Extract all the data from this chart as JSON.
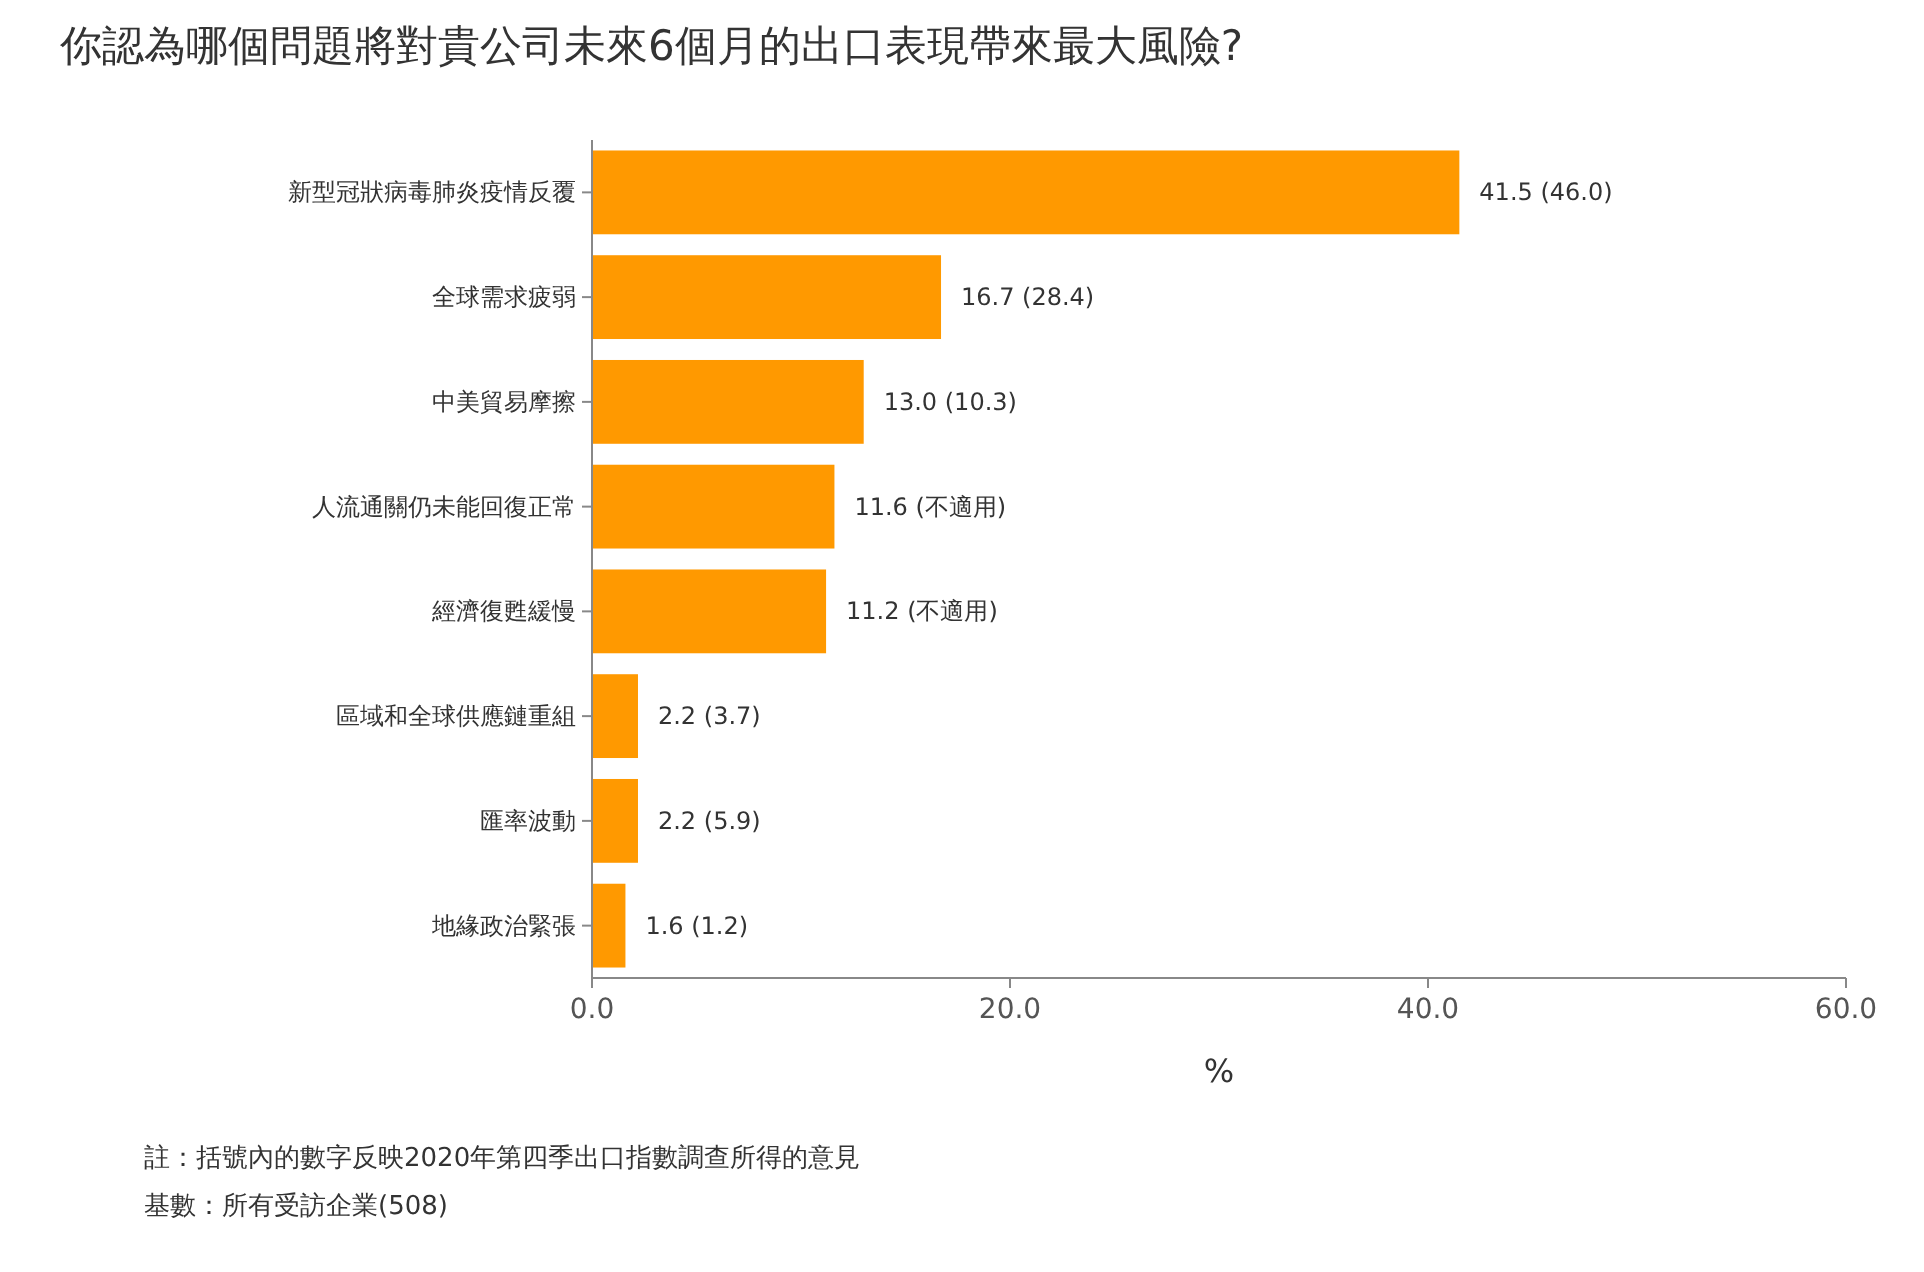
{
  "chart_data": {
    "type": "bar",
    "orientation": "horizontal",
    "title": "你認為哪個問題將對貴公司未來6個月的出口表現帶來最大風險?",
    "xlabel": "%",
    "categories": [
      "新型冠狀病毒肺炎疫情反覆",
      "全球需求疲弱",
      "中美貿易摩擦",
      "人流通關仍未能回復正常",
      "經濟復甦緩慢",
      "區域和全球供應鏈重組",
      "匯率波動",
      "地緣政治緊張"
    ],
    "values": [
      41.5,
      16.7,
      13.0,
      11.6,
      11.2,
      2.2,
      2.2,
      1.6
    ],
    "value_labels": [
      "41.5 (46.0)",
      "16.7 (28.4)",
      "13.0 (10.3)",
      "11.6 (不適用)",
      "11.2 (不適用)",
      "2.2 (3.7)",
      "2.2 (5.9)",
      "1.6 (1.2)"
    ],
    "color": "#ff9900",
    "xlim": [
      0,
      60
    ],
    "xticks": [
      {
        "value": 0,
        "label": "0.0"
      },
      {
        "value": 20,
        "label": "20.0"
      },
      {
        "value": 40,
        "label": "40.0"
      },
      {
        "value": 60,
        "label": "60.0"
      }
    ],
    "annotations": [
      "註：括號內的數字反映2020年第四季出口指數調查所得的意見",
      "基數：所有受訪企業(508)"
    ]
  }
}
